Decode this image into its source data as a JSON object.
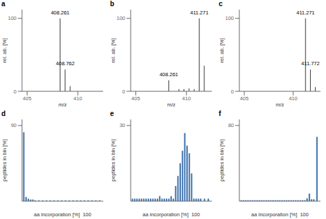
{
  "chart_data": [
    {
      "type": "stem",
      "title": "a",
      "x": [
        408.261,
        408.762,
        409.26
      ],
      "values": [
        100,
        30,
        7
      ],
      "color": "#333333",
      "annotations": [
        {
          "text": "408.261",
          "x": 408.261,
          "y": 100
        },
        {
          "text": "408.762",
          "x": 408.762,
          "y": 30
        }
      ],
      "xlim": [
        404.5,
        412.5
      ],
      "ylim": [
        0,
        112
      ],
      "xticks": [
        405,
        410
      ],
      "yticks": [
        0,
        100
      ],
      "xlabel": "m/z",
      "ylabel": "rel. ab. [%]",
      "grid": false
    },
    {
      "type": "stem",
      "title": "b",
      "x": [
        408.261,
        409.26,
        409.76,
        410.26,
        410.76,
        411.271,
        411.76
      ],
      "values": [
        15,
        3,
        3,
        4,
        3,
        100,
        35
      ],
      "color": "#333333",
      "annotations": [
        {
          "text": "408.261",
          "x": 408.261,
          "y": 15
        },
        {
          "text": "411.271",
          "x": 411.271,
          "y": 100
        }
      ],
      "xlim": [
        404.5,
        412.5
      ],
      "ylim": [
        0,
        112
      ],
      "xticks": [
        405,
        410
      ],
      "yticks": [
        0,
        100
      ],
      "xlabel": "m/z",
      "ylabel": "rel. ab. [%]",
      "grid": false
    },
    {
      "type": "stem",
      "title": "c",
      "x": [
        411.271,
        411.772,
        412.27
      ],
      "values": [
        100,
        30,
        6
      ],
      "color": "#333333",
      "annotations": [
        {
          "text": "411.271",
          "x": 411.271,
          "y": 100
        },
        {
          "text": "411.772",
          "x": 411.772,
          "y": 30
        }
      ],
      "xlim": [
        404.5,
        412.8
      ],
      "ylim": [
        0,
        112
      ],
      "xticks": [
        405,
        410
      ],
      "yticks": [
        0,
        100
      ],
      "xlabel": "m/z",
      "ylabel": "rel. ab. [%]",
      "grid": false
    },
    {
      "type": "bar",
      "title": "d",
      "x": [
        0,
        3,
        6,
        9,
        12,
        15,
        20,
        25,
        30,
        35,
        40,
        45,
        50,
        55,
        60,
        65,
        70,
        75,
        80,
        85,
        90,
        95,
        100
      ],
      "values": [
        82,
        5,
        3,
        2,
        2,
        1,
        1,
        1,
        1,
        1,
        1,
        1,
        1,
        1,
        1,
        1,
        1,
        1,
        1,
        1,
        1,
        1,
        1
      ],
      "color": "#3a6fac",
      "xlim": [
        -2,
        105
      ],
      "ylim": [
        0,
        97.2
      ],
      "yticks": [
        90
      ],
      "xlabel": "aa incorporation [%]  100",
      "ylabel": "peptides in bin [%]",
      "tick_labels": "y",
      "grid": false
    },
    {
      "type": "bar",
      "title": "e",
      "x": [
        0,
        3,
        6,
        9,
        12,
        15,
        18,
        21,
        24,
        27,
        30,
        33,
        36,
        39,
        42,
        45,
        48,
        51,
        54,
        57,
        60,
        63,
        66,
        69,
        72,
        75,
        78,
        81,
        84,
        87,
        90,
        95,
        100
      ],
      "values": [
        1,
        1,
        1,
        1,
        1,
        1,
        1,
        1,
        1,
        1,
        1,
        1,
        2,
        1,
        1,
        1,
        1,
        2,
        1,
        6,
        10,
        15,
        20,
        27,
        22,
        19,
        11,
        1,
        1,
        1,
        1,
        1,
        1
      ],
      "color": "#3a6fac",
      "xlim": [
        -2,
        105
      ],
      "ylim": [
        0,
        32.4
      ],
      "yticks": [
        30
      ],
      "xlabel": "aa incorporation [%]  100",
      "ylabel": "peptides in bin [%]",
      "tick_labels": "y",
      "grid": false
    },
    {
      "type": "bar",
      "title": "f",
      "x": [
        0,
        3,
        6,
        9,
        12,
        15,
        18,
        21,
        24,
        27,
        30,
        33,
        36,
        39,
        42,
        45,
        48,
        51,
        54,
        57,
        60,
        63,
        66,
        69,
        72,
        75,
        78,
        81,
        84,
        87,
        90,
        93,
        96,
        100
      ],
      "values": [
        1,
        1,
        1,
        1,
        1,
        1,
        1,
        1,
        1,
        1,
        1,
        1,
        1,
        1,
        1,
        1,
        1,
        1,
        1,
        1,
        1,
        1,
        1,
        1,
        1,
        1,
        1,
        1,
        1,
        3,
        8,
        2,
        2,
        68
      ],
      "color": "#3a6fac",
      "xlim": [
        -2,
        105
      ],
      "ylim": [
        0,
        86.4
      ],
      "yticks": [
        80
      ],
      "xlabel": "aa incorporation [%]  100",
      "ylabel": "peptides in bin [%]",
      "tick_labels": "y",
      "grid": false
    }
  ]
}
